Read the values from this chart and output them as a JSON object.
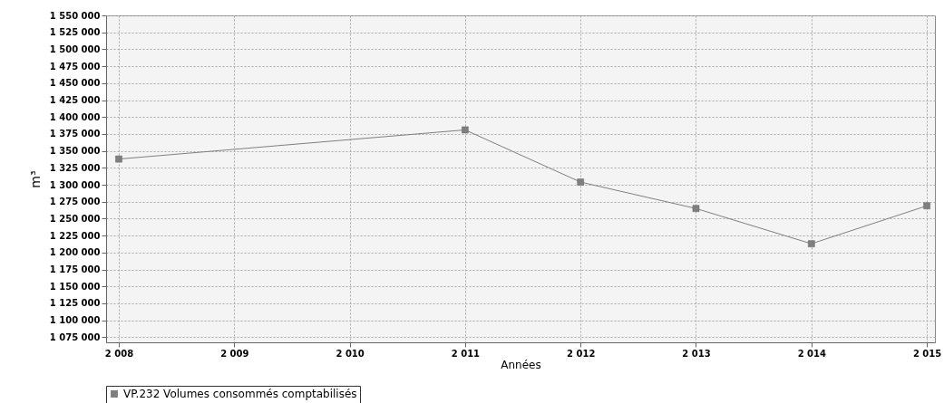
{
  "chart_data": {
    "type": "line",
    "xlabel": "Années",
    "ylabel": "m³",
    "x": [
      2008,
      2011,
      2012,
      2013,
      2014,
      2015
    ],
    "series": [
      {
        "name": "VP.232 Volumes consommés comptabilisés",
        "color": "#7f7f7f",
        "values": [
          1338000,
          1381000,
          1304000,
          1265000,
          1213000,
          1269000
        ]
      }
    ],
    "xlim": [
      2007.89,
      2015.07
    ],
    "ylim": [
      1067500,
      1550000
    ],
    "xticks": [
      {
        "value": 2008,
        "label": "2 008"
      },
      {
        "value": 2009,
        "label": "2 009"
      },
      {
        "value": 2010,
        "label": "2 010"
      },
      {
        "value": 2011,
        "label": "2 011"
      },
      {
        "value": 2012,
        "label": "2 012"
      },
      {
        "value": 2013,
        "label": "2 013"
      },
      {
        "value": 2014,
        "label": "2 014"
      },
      {
        "value": 2015,
        "label": "2 015"
      }
    ],
    "yticks": [
      {
        "value": 1075000,
        "label": "1 075 000"
      },
      {
        "value": 1100000,
        "label": "1 100 000"
      },
      {
        "value": 1125000,
        "label": "1 125 000"
      },
      {
        "value": 1150000,
        "label": "1 150 000"
      },
      {
        "value": 1175000,
        "label": "1 175 000"
      },
      {
        "value": 1200000,
        "label": "1 200 000"
      },
      {
        "value": 1225000,
        "label": "1 225 000"
      },
      {
        "value": 1250000,
        "label": "1 250 000"
      },
      {
        "value": 1275000,
        "label": "1 275 000"
      },
      {
        "value": 1300000,
        "label": "1 300 000"
      },
      {
        "value": 1325000,
        "label": "1 325 000"
      },
      {
        "value": 1350000,
        "label": "1 350 000"
      },
      {
        "value": 1375000,
        "label": "1 375 000"
      },
      {
        "value": 1400000,
        "label": "1 400 000"
      },
      {
        "value": 1425000,
        "label": "1 425 000"
      },
      {
        "value": 1450000,
        "label": "1 450 000"
      },
      {
        "value": 1475000,
        "label": "1 475 000"
      },
      {
        "value": 1500000,
        "label": "1 500 000"
      },
      {
        "value": 1525000,
        "label": "1 525 000"
      },
      {
        "value": 1550000,
        "label": "1 550 000"
      }
    ],
    "grid": true,
    "legend": "bottom",
    "marker": "square",
    "line_style": "solid"
  }
}
